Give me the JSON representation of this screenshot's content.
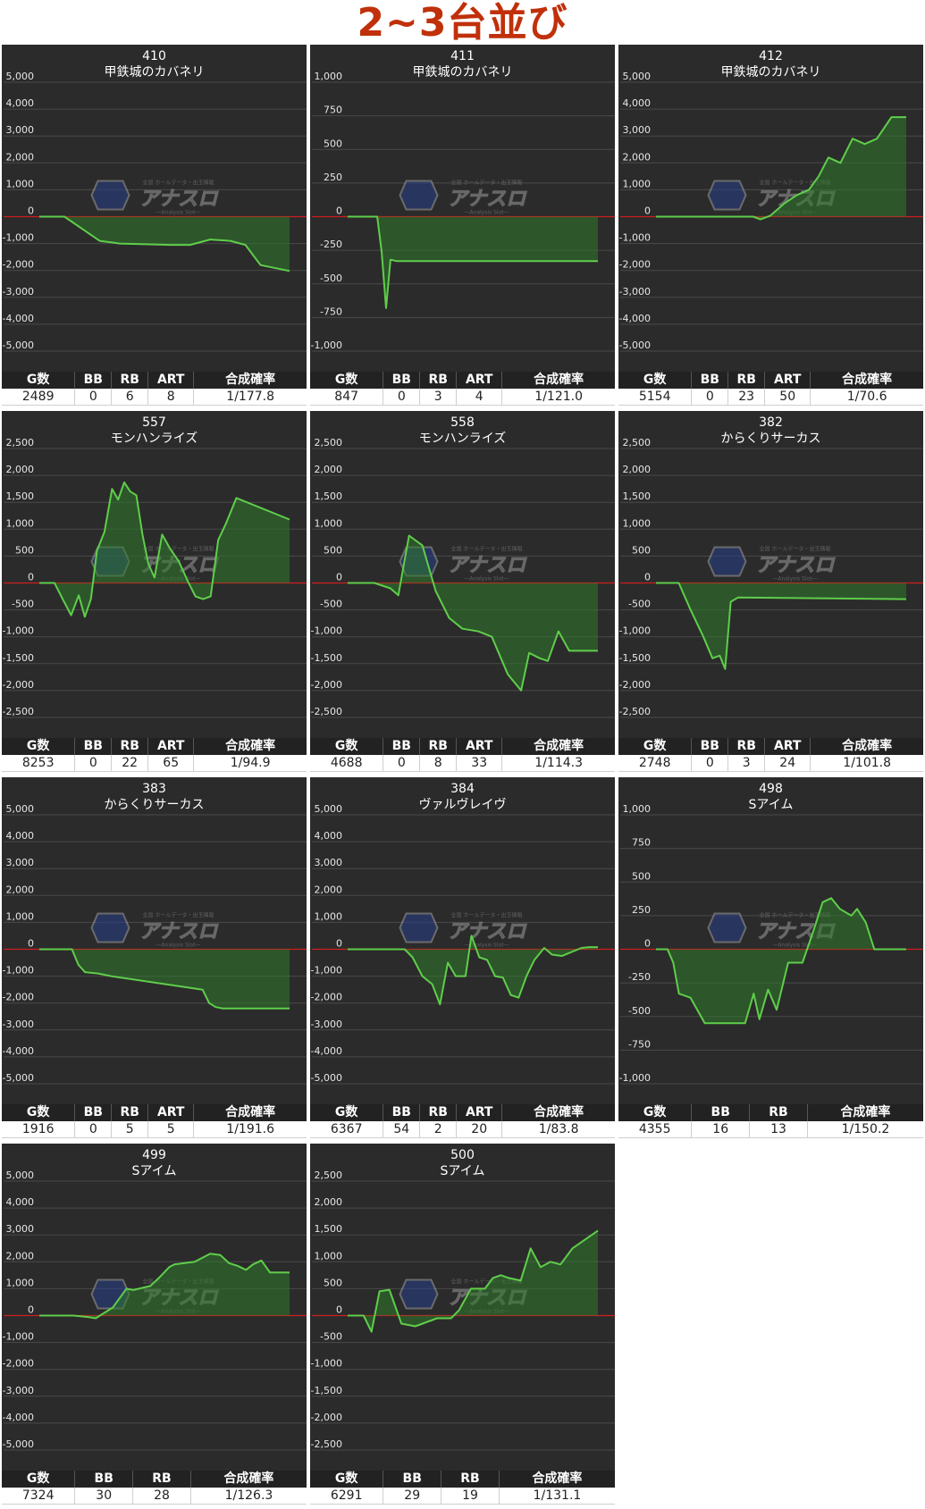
{
  "heading": "2~3台並び",
  "watermark": {
    "brand": "アナスロ",
    "tagline": "全国 ホールデータ・出玉情報",
    "sub": "Analysis Slot"
  },
  "colors": {
    "panel_bg": "#2b2b2b",
    "grid": "#4a4a4a",
    "line": "#5fce4a",
    "fill": "#2f7a2c",
    "zero_line": "#cc1f1f",
    "header_bg": "#222222"
  },
  "panels": [
    {
      "id": "410",
      "name": "甲鉄城のカバネリ",
      "stat_headers": [
        "G数",
        "BB",
        "RB",
        "ART",
        "合成確率"
      ],
      "stat_values": [
        "2489",
        "0",
        "6",
        "8",
        "1/177.8"
      ]
    },
    {
      "id": "411",
      "name": "甲鉄城のカバネリ",
      "stat_headers": [
        "G数",
        "BB",
        "RB",
        "ART",
        "合成確率"
      ],
      "stat_values": [
        "847",
        "0",
        "3",
        "4",
        "1/121.0"
      ]
    },
    {
      "id": "412",
      "name": "甲鉄城のカバネリ",
      "stat_headers": [
        "G数",
        "BB",
        "RB",
        "ART",
        "合成確率"
      ],
      "stat_values": [
        "5154",
        "0",
        "23",
        "50",
        "1/70.6"
      ]
    },
    {
      "id": "557",
      "name": "モンハンライズ",
      "stat_headers": [
        "G数",
        "BB",
        "RB",
        "ART",
        "合成確率"
      ],
      "stat_values": [
        "8253",
        "0",
        "22",
        "65",
        "1/94.9"
      ]
    },
    {
      "id": "558",
      "name": "モンハンライズ",
      "stat_headers": [
        "G数",
        "BB",
        "RB",
        "ART",
        "合成確率"
      ],
      "stat_values": [
        "4688",
        "0",
        "8",
        "33",
        "1/114.3"
      ]
    },
    {
      "id": "382",
      "name": "からくりサーカス",
      "stat_headers": [
        "G数",
        "BB",
        "RB",
        "ART",
        "合成確率"
      ],
      "stat_values": [
        "2748",
        "0",
        "3",
        "24",
        "1/101.8"
      ]
    },
    {
      "id": "383",
      "name": "からくりサーカス",
      "stat_headers": [
        "G数",
        "BB",
        "RB",
        "ART",
        "合成確率"
      ],
      "stat_values": [
        "1916",
        "0",
        "5",
        "5",
        "1/191.6"
      ]
    },
    {
      "id": "384",
      "name": "ヴァルヴレイヴ",
      "stat_headers": [
        "G数",
        "BB",
        "RB",
        "ART",
        "合成確率"
      ],
      "stat_values": [
        "6367",
        "54",
        "2",
        "20",
        "1/83.8"
      ]
    },
    {
      "id": "498",
      "name": "Sアイム",
      "stat_headers": [
        "G数",
        "BB",
        "RB",
        "合成確率"
      ],
      "stat_values": [
        "4355",
        "16",
        "13",
        "1/150.2"
      ]
    },
    {
      "id": "499",
      "name": "Sアイム",
      "stat_headers": [
        "G数",
        "BB",
        "RB",
        "合成確率"
      ],
      "stat_values": [
        "7324",
        "30",
        "28",
        "1/126.3"
      ]
    },
    {
      "id": "500",
      "name": "Sアイム",
      "stat_headers": [
        "G数",
        "BB",
        "RB",
        "合成確率"
      ],
      "stat_values": [
        "6291",
        "29",
        "19",
        "1/131.1"
      ]
    }
  ],
  "chart_data": [
    {
      "type": "area",
      "title": "410 甲鉄城のカバネリ",
      "yticks": [
        "5,000",
        "4,000",
        "3,000",
        "2,000",
        "1,000",
        "0",
        "-1,000",
        "-2,000",
        "-3,000",
        "-4,000",
        "-5,000"
      ],
      "ylim": [
        -5000,
        5000
      ],
      "x": [
        0,
        250,
        600,
        800,
        1100,
        1300,
        1500,
        1700,
        1900,
        2050,
        2200,
        2489
      ],
      "y": [
        0,
        0,
        -900,
        -1000,
        -1030,
        -1050,
        -1050,
        -850,
        -900,
        -1050,
        -1800,
        -2020
      ]
    },
    {
      "type": "area",
      "title": "411 甲鉄城のカバネリ",
      "yticks": [
        "1,000",
        "750",
        "500",
        "250",
        "0",
        "-250",
        "-500",
        "-750",
        "-1,000"
      ],
      "ylim": [
        -1000,
        1000
      ],
      "x": [
        0,
        100,
        115,
        130,
        145,
        165,
        847
      ],
      "y": [
        0,
        0,
        -260,
        -680,
        -320,
        -330,
        -330
      ]
    },
    {
      "type": "area",
      "title": "412 甲鉄城のカバネリ",
      "yticks": [
        "5,000",
        "4,000",
        "3,000",
        "2,000",
        "1,000",
        "0",
        "-1,000",
        "-2,000",
        "-3,000",
        "-4,000",
        "-5,000"
      ],
      "ylim": [
        -5000,
        5000
      ],
      "x": [
        0,
        2000,
        2150,
        2350,
        2650,
        2900,
        3150,
        3350,
        3550,
        3800,
        4050,
        4300,
        4550,
        4850,
        5154
      ],
      "y": [
        0,
        0,
        -100,
        30,
        500,
        800,
        1000,
        1500,
        2200,
        2000,
        2900,
        2700,
        2900,
        3700,
        3700
      ]
    },
    {
      "type": "area",
      "title": "557 モンハンライズ",
      "yticks": [
        "2,500",
        "2,000",
        "1,500",
        "1,000",
        "500",
        "0",
        "-500",
        "-1,000",
        "-1,500",
        "-2,000",
        "-2,500"
      ],
      "ylim": [
        -2500,
        2500
      ],
      "x": [
        0,
        500,
        800,
        1050,
        1300,
        1500,
        1700,
        1900,
        2150,
        2400,
        2600,
        2800,
        3000,
        3200,
        3400,
        3600,
        3800,
        4050,
        4300,
        4600,
        4900,
        5150,
        5400,
        5650,
        5900,
        6150,
        6500,
        8253
      ],
      "y": [
        0,
        0,
        -330,
        -600,
        -230,
        -630,
        -300,
        600,
        950,
        1750,
        1550,
        1870,
        1700,
        1630,
        900,
        350,
        100,
        900,
        650,
        400,
        30,
        -250,
        -300,
        -250,
        800,
        1100,
        1580,
        1180
      ]
    },
    {
      "type": "area",
      "title": "558 モンハンライズ",
      "yticks": [
        "2,500",
        "2,000",
        "1,500",
        "1,000",
        "500",
        "0",
        "-500",
        "-1,000",
        "-1,500",
        "-2,000",
        "-2,500"
      ],
      "ylim": [
        -2500,
        2500
      ],
      "x": [
        0,
        500,
        800,
        950,
        1150,
        1400,
        1650,
        1900,
        2150,
        2450,
        2700,
        3000,
        3250,
        3400,
        3600,
        3750,
        3950,
        4150,
        4688
      ],
      "y": [
        0,
        0,
        -100,
        -230,
        880,
        700,
        -150,
        -650,
        -850,
        -900,
        -1000,
        -1700,
        -2000,
        -1300,
        -1400,
        -1450,
        -900,
        -1260,
        -1260
      ]
    },
    {
      "type": "area",
      "title": "382 からくりサーカス",
      "yticks": [
        "2,500",
        "2,000",
        "1,500",
        "1,000",
        "500",
        "0",
        "-500",
        "-1,000",
        "-1,500",
        "-2,000",
        "-2,500"
      ],
      "ylim": [
        -2500,
        2500
      ],
      "x": [
        0,
        250,
        380,
        520,
        620,
        700,
        760,
        820,
        900,
        2748
      ],
      "y": [
        0,
        0,
        -500,
        -1000,
        -1400,
        -1350,
        -1600,
        -350,
        -270,
        -300
      ]
    },
    {
      "type": "area",
      "title": "383 からくりサーカス",
      "yticks": [
        "5,000",
        "4,000",
        "3,000",
        "2,000",
        "1,000",
        "0",
        "-1,000",
        "-2,000",
        "-3,000",
        "-4,000",
        "-5,000"
      ],
      "ylim": [
        -5000,
        5000
      ],
      "x": [
        0,
        250,
        300,
        350,
        450,
        550,
        1250,
        1300,
        1350,
        1400,
        1916
      ],
      "y": [
        0,
        0,
        -580,
        -850,
        -900,
        -1000,
        -1500,
        -2000,
        -2150,
        -2200,
        -2200
      ]
    },
    {
      "type": "area",
      "title": "384 ヴァルヴレイヴ",
      "yticks": [
        "5,000",
        "4,000",
        "3,000",
        "2,000",
        "1,000",
        "0",
        "-1,000",
        "-2,000",
        "-3,000",
        "-4,000",
        "-5,000"
      ],
      "ylim": [
        -5000,
        5000
      ],
      "x": [
        0,
        1450,
        1650,
        1900,
        2150,
        2350,
        2550,
        2750,
        3000,
        3150,
        3350,
        3550,
        3750,
        3950,
        4150,
        4350,
        4550,
        4750,
        5000,
        5200,
        5450,
        5700,
        5950,
        6150,
        6367
      ],
      "y": [
        0,
        0,
        -300,
        -1000,
        -1300,
        -2050,
        -500,
        -1000,
        -1000,
        500,
        -300,
        -400,
        -1000,
        -1050,
        -1700,
        -1800,
        -1000,
        -400,
        50,
        -200,
        -250,
        -100,
        50,
        80,
        80
      ]
    },
    {
      "type": "area",
      "title": "498 Sアイム",
      "yticks": [
        "1,000",
        "750",
        "500",
        "250",
        "0",
        "-250",
        "-500",
        "-750",
        "-1,000"
      ],
      "ylim": [
        -1000,
        1000
      ],
      "x": [
        0,
        200,
        300,
        400,
        600,
        850,
        1300,
        1550,
        1700,
        1800,
        1950,
        2100,
        2300,
        2550,
        2750,
        2900,
        3050,
        3200,
        3400,
        3500,
        3650,
        3800,
        4000,
        4355
      ],
      "y": [
        0,
        0,
        -100,
        -330,
        -360,
        -550,
        -550,
        -550,
        -330,
        -520,
        -300,
        -450,
        -100,
        -100,
        150,
        350,
        380,
        300,
        250,
        300,
        200,
        0,
        0,
        0
      ]
    },
    {
      "type": "area",
      "title": "499 Sアイム",
      "yticks": [
        "5,000",
        "4,000",
        "3,000",
        "2,000",
        "1,000",
        "0",
        "-1,000",
        "-2,000",
        "-3,000",
        "-4,000",
        "-5,000"
      ],
      "ylim": [
        -5000,
        5000
      ],
      "x": [
        0,
        1000,
        1400,
        1650,
        1900,
        2150,
        2550,
        2750,
        3250,
        3500,
        3800,
        3950,
        4250,
        4550,
        5000,
        5300,
        5550,
        5800,
        6050,
        6250,
        6500,
        6750,
        7324
      ],
      "y": [
        0,
        0,
        -50,
        -100,
        100,
        300,
        1000,
        950,
        1100,
        1400,
        1800,
        1900,
        1950,
        2000,
        2300,
        2250,
        1950,
        1850,
        1700,
        1900,
        2050,
        1600,
        1600
      ]
    },
    {
      "type": "area",
      "title": "500 Sアイム",
      "yticks": [
        "2,500",
        "2,000",
        "1,500",
        "1,000",
        "500",
        "0",
        "-500",
        "-1,000",
        "-1,500",
        "-2,000",
        "-2,500"
      ],
      "ylim": [
        -2500,
        2500
      ],
      "x": [
        0,
        400,
        600,
        800,
        1050,
        1350,
        1700,
        2250,
        2600,
        2800,
        3100,
        3450,
        3650,
        3850,
        4050,
        4350,
        4600,
        4850,
        5100,
        5350,
        5650,
        6291
      ],
      "y": [
        0,
        0,
        -300,
        450,
        480,
        -150,
        -200,
        -50,
        -50,
        100,
        500,
        500,
        700,
        750,
        700,
        650,
        1250,
        900,
        1000,
        950,
        1250,
        1580
      ]
    }
  ]
}
